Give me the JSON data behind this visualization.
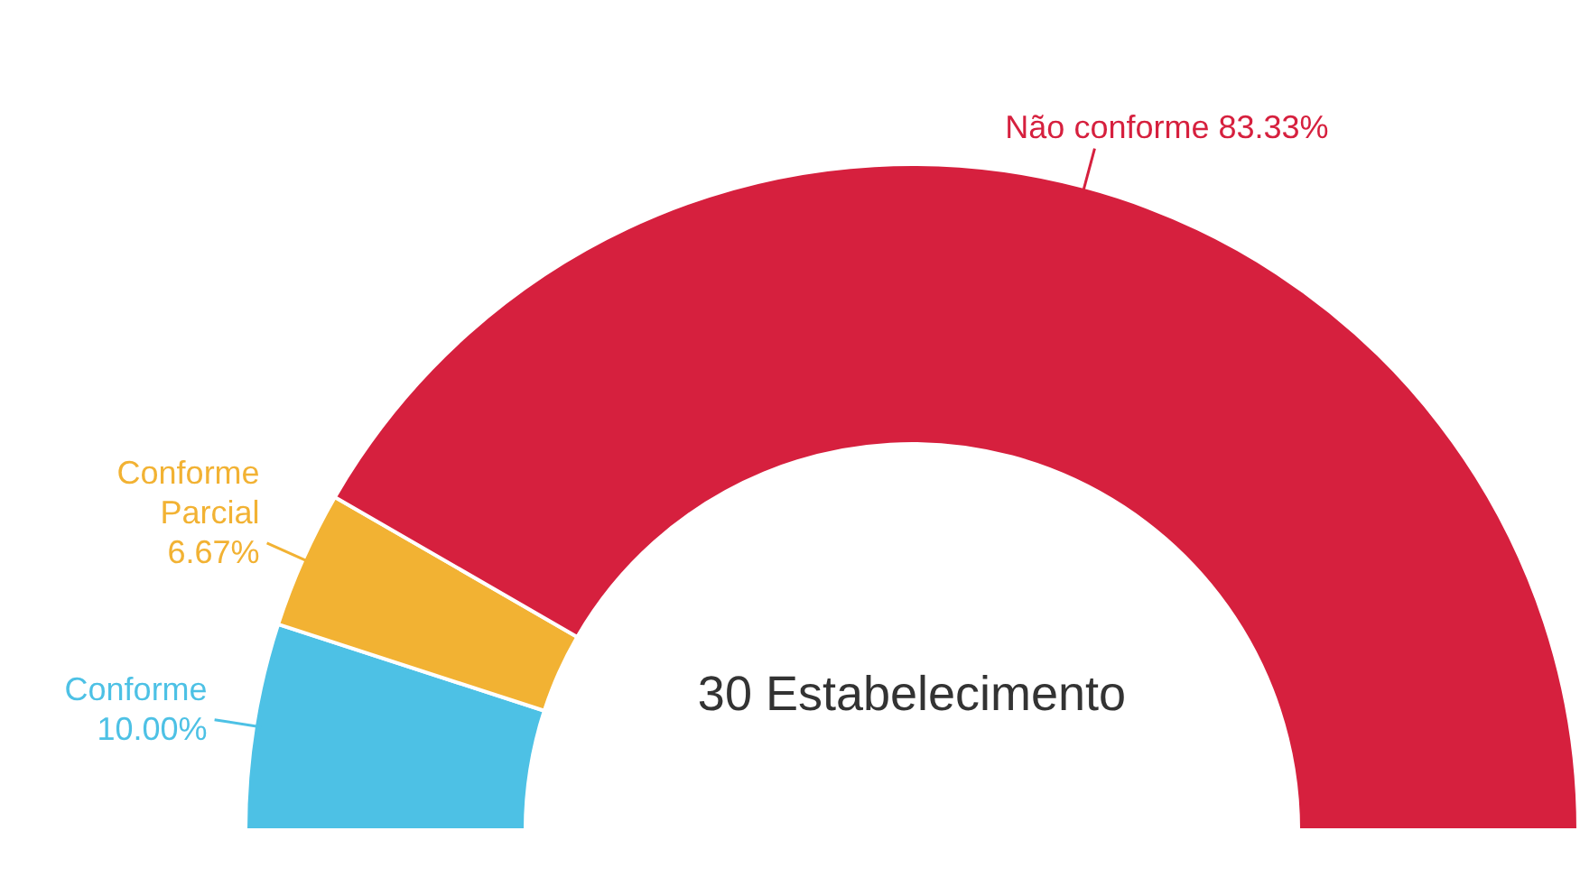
{
  "chart_data": {
    "type": "donut",
    "categories": [
      "Conforme",
      "Conforme Parcial",
      "Não conforme"
    ],
    "values": [
      10.0,
      6.67,
      83.33
    ],
    "colors": [
      "#4dc1e5",
      "#f2b233",
      "#d6203e"
    ],
    "value_labels": [
      "10.00%",
      "6.67%",
      "83.33%"
    ],
    "annotations": [
      "30 Estabelecimento"
    ],
    "legend": false
  }
}
